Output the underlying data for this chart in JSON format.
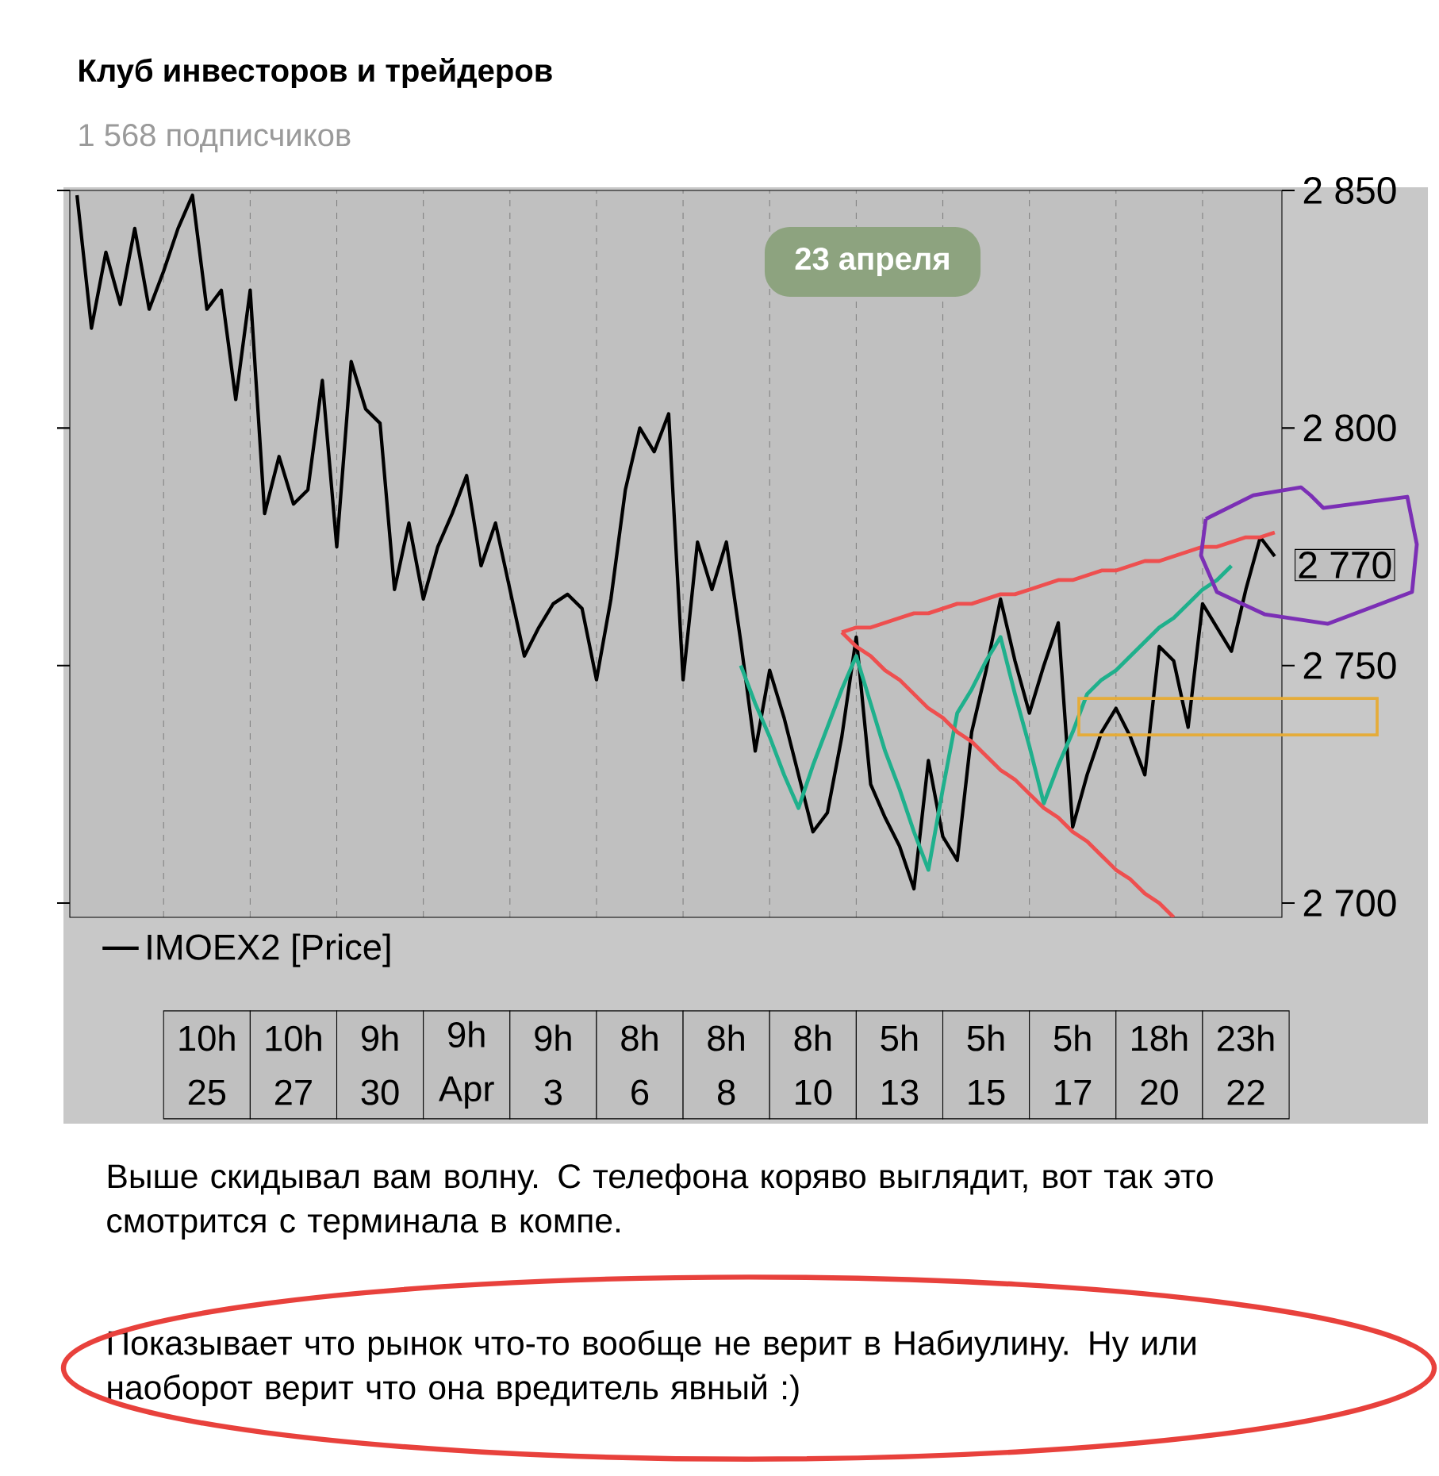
{
  "chart_data": {
    "type": "line",
    "title": "Клуб инвесторов и трейдеров",
    "subtitle": "1 568 подписчиков",
    "categories": [
      null,
      null,
      null,
      null,
      null,
      null,
      null,
      null,
      null,
      "10h 25",
      null,
      null,
      null,
      null,
      null,
      "10h 27",
      null,
      null,
      null,
      null,
      null,
      "9h 30",
      null,
      null,
      null,
      null,
      null,
      "9h Apr",
      null,
      null,
      null,
      null,
      null,
      "9h 3",
      null,
      null,
      null,
      null,
      null,
      "8h 6",
      null,
      null,
      null,
      null,
      null,
      "8h 8",
      null,
      null,
      null,
      null,
      null,
      "8h 10",
      null,
      null,
      null,
      null,
      null,
      "5h 13",
      null,
      null,
      null,
      null,
      null,
      "5h 15",
      null,
      null,
      null,
      null,
      null,
      "5h 17",
      null,
      null,
      null,
      null,
      null,
      "18h 20",
      null,
      null,
      null,
      null,
      null,
      "23h 22",
      null,
      null
    ],
    "ylim": [
      2697,
      2850
    ],
    "yticks": [
      {
        "value": 2700,
        "label": "2 700"
      },
      {
        "value": 2750,
        "label": "2 750"
      },
      {
        "value": 2800,
        "label": "2 800"
      },
      {
        "value": 2850,
        "label": "2 850"
      }
    ],
    "grid": "x",
    "legend": "bottom left",
    "series": [
      {
        "name": "IMOEX2 [Price]",
        "color": "#000000",
        "values": [
          2849,
          2821,
          2837,
          2826,
          2842,
          2825,
          2833,
          2842,
          2849,
          2825,
          2829,
          2806,
          2829,
          2782,
          2794,
          2784,
          2787,
          2810,
          2775,
          2814,
          2804,
          2801,
          2766,
          2780,
          2764,
          2775,
          2782,
          2790,
          2771,
          2780,
          2766,
          2752,
          2758,
          2763,
          2765,
          2762,
          2747,
          2764,
          2787,
          2800,
          2795,
          2803,
          2747,
          2776,
          2766,
          2776,
          2755,
          2732,
          2749,
          2739,
          2727,
          2715,
          2719,
          2735,
          2756,
          2725,
          2718,
          2712,
          2703,
          2730,
          2714,
          2709,
          2736,
          2749,
          2764,
          2751,
          2740,
          2750,
          2759,
          2716,
          2727,
          2736,
          2741,
          2735,
          2727,
          2754,
          2751,
          2737,
          2763,
          2758,
          2753,
          2766,
          2777,
          2773
        ]
      },
      {
        "color": "#1fb08c",
        "values": [
          null,
          null,
          null,
          null,
          null,
          null,
          null,
          null,
          null,
          null,
          null,
          null,
          null,
          null,
          null,
          null,
          null,
          null,
          null,
          null,
          null,
          null,
          null,
          null,
          null,
          null,
          null,
          null,
          null,
          null,
          null,
          null,
          null,
          null,
          null,
          null,
          null,
          null,
          null,
          null,
          null,
          null,
          null,
          null,
          null,
          null,
          2750,
          2742,
          2735,
          2727,
          2720,
          2729,
          2737,
          2745,
          2752,
          2742,
          2732,
          2724,
          2715,
          2707,
          2724,
          2740,
          2745,
          2751,
          2756,
          2744,
          2733,
          2721,
          2729,
          2736,
          2744,
          2747,
          2749,
          2752,
          2755,
          2758,
          2760,
          2763,
          2766,
          2768,
          2771,
          null,
          null,
          null
        ]
      },
      {
        "color": "#ee4f4f",
        "values": [
          null,
          null,
          null,
          null,
          null,
          null,
          null,
          null,
          null,
          null,
          null,
          null,
          null,
          null,
          null,
          null,
          null,
          null,
          null,
          null,
          null,
          null,
          null,
          null,
          null,
          null,
          null,
          null,
          null,
          null,
          null,
          null,
          null,
          null,
          null,
          null,
          null,
          null,
          null,
          null,
          null,
          null,
          null,
          null,
          null,
          null,
          null,
          null,
          null,
          null,
          null,
          null,
          null,
          2757,
          2758,
          2758,
          2759,
          2760,
          2761,
          2761,
          2762,
          2763,
          2763,
          2764,
          2765,
          2765,
          2766,
          2767,
          2768,
          2768,
          2769,
          2770,
          2770,
          2771,
          2772,
          2772,
          2773,
          2774,
          2775,
          2775,
          2776,
          2777,
          2777,
          2778
        ]
      },
      {
        "color": "#ee4f4f",
        "values": [
          null,
          null,
          null,
          null,
          null,
          null,
          null,
          null,
          null,
          null,
          null,
          null,
          null,
          null,
          null,
          null,
          null,
          null,
          null,
          null,
          null,
          null,
          null,
          null,
          null,
          null,
          null,
          null,
          null,
          null,
          null,
          null,
          null,
          null,
          null,
          null,
          null,
          null,
          null,
          null,
          null,
          null,
          null,
          null,
          null,
          null,
          null,
          null,
          null,
          null,
          null,
          null,
          null,
          2757,
          2754,
          2752,
          2749,
          2747,
          2744,
          2741,
          2739,
          2736,
          2734,
          2731,
          2728,
          2726,
          2723,
          2720,
          2718,
          2715,
          2713,
          2710,
          2707,
          2705,
          2702,
          2700,
          2697,
          null,
          null,
          null,
          null,
          null,
          null,
          null
        ]
      }
    ],
    "annotations": [
      "23 апреля",
      "2 770",
      "Выше скидывал вам волну. С телефона коряво выглядит, вот так это смотрится с терминала в компе.",
      "Показывает что рынок что-то вообще не верит в Набиулину. Ну или наоборот верит что она вредитель явный :)"
    ]
  }
}
